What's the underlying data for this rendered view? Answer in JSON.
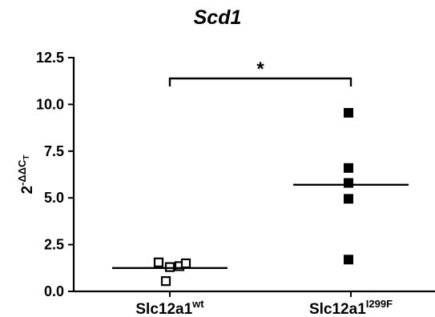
{
  "chart_data": {
    "type": "scatter",
    "title": "Scd1",
    "ylabel": {
      "base": "2",
      "exp_prefix": "-",
      "exp_symbols": "ΔΔC",
      "exp_sub": "T"
    },
    "xlabel": "",
    "ylim": [
      0,
      12.5
    ],
    "yticks": [
      "0.0",
      "2.5",
      "5.0",
      "7.5",
      "10.0",
      "12.5"
    ],
    "categories": [
      {
        "base": "Slc12a1",
        "sup": "wt",
        "marker": "open-square"
      },
      {
        "base": "Slc12a1",
        "sup": "I299F",
        "marker": "filled-square"
      }
    ],
    "series": [
      {
        "values": [
          1.55,
          1.3,
          1.35,
          1.5,
          0.55
        ],
        "mean": 1.25
      },
      {
        "values": [
          9.55,
          6.6,
          5.8,
          4.95,
          1.7
        ],
        "mean": 5.7
      }
    ],
    "annotations": [
      {
        "text": "*",
        "between": [
          0,
          1
        ]
      }
    ],
    "grid": false,
    "legend": "none"
  }
}
